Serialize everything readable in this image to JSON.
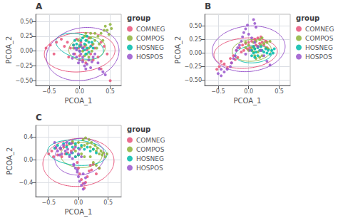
{
  "chart_data": [
    {
      "type": "scatter",
      "title": "A",
      "x_label": "PCOA_1",
      "y_label": "PCOA_2",
      "legend_title": "group",
      "legend": "right",
      "grid": true,
      "xlim": [
        -0.72,
        0.68
      ],
      "ylim": [
        -0.58,
        0.62
      ],
      "xticks": [
        {
          "value": -0.5,
          "label": "−0.5"
        },
        {
          "value": 0,
          "label": "0.0"
        },
        0.5
      ],
      "yticks": [
        {
          "value": -0.5,
          "label": "−0.50"
        },
        {
          "value": -0.25,
          "label": "−0.25"
        },
        {
          "value": 0,
          "label": "0.00"
        },
        0.25,
        {
          "value": 0.5,
          "label": "0.50"
        }
      ],
      "series": [
        {
          "name": "COMNEG",
          "color": "#E8537A",
          "x": [
            -0.55,
            -0.48,
            -0.42,
            -0.38,
            -0.3,
            -0.25,
            -0.2,
            -0.18,
            -0.15,
            -0.1,
            -0.08,
            -0.05,
            -0.02,
            0.0,
            0.02,
            0.05,
            0.08,
            0.1,
            0.12,
            0.15,
            0.18,
            0.2,
            0.22,
            0.25,
            0.3,
            0.35,
            0.4,
            0.45,
            0.5,
            0.35
          ],
          "values": [
            0.05,
            0.1,
            -0.05,
            0.15,
            0.2,
            0.08,
            0.15,
            -0.1,
            0.05,
            0.1,
            -0.05,
            0.2,
            0.05,
            -0.08,
            0.15,
            -0.15,
            0.08,
            -0.2,
            0.02,
            0.22,
            -0.05,
            0.1,
            -0.15,
            0.05,
            -0.1,
            0.15,
            0.08,
            -0.05,
            -0.5,
            -0.3
          ],
          "ellipse": {
            "cx": 0.0,
            "cy": -0.02,
            "rx": 0.58,
            "ry": 0.33,
            "angle": 5
          }
        },
        {
          "name": "COMPOS",
          "color": "#8DB33A",
          "x": [
            -0.1,
            0.0,
            0.05,
            0.08,
            0.1,
            0.12,
            0.15,
            0.18,
            0.2,
            0.22,
            0.25,
            0.28,
            0.3,
            0.32,
            0.35,
            0.38,
            0.4,
            0.42,
            0.45,
            0.48,
            0.5,
            0.52,
            0.12,
            0.15,
            0.18,
            0.1,
            0.08,
            -0.02,
            0.02,
            0.25
          ],
          "values": [
            0.05,
            0.1,
            0.0,
            -0.08,
            0.1,
            0.18,
            0.05,
            0.22,
            0.0,
            0.12,
            0.18,
            0.05,
            0.25,
            0.12,
            0.3,
            0.18,
            0.35,
            0.42,
            0.35,
            0.28,
            0.45,
            0.38,
            -0.05,
            -0.1,
            0.3,
            0.3,
            0.25,
            0.18,
            0.08,
            0.3
          ],
          "ellipse": {
            "cx": 0.12,
            "cy": 0.04,
            "rx": 0.3,
            "ry": 0.2,
            "angle": 8
          }
        },
        {
          "name": "HOSNEG",
          "color": "#00BBAA",
          "x": [
            -0.08,
            -0.05,
            0.0,
            0.02,
            0.05,
            0.05,
            0.08,
            0.1,
            0.12,
            0.12,
            0.15,
            0.15,
            0.18,
            0.2,
            0.22,
            0.0,
            -0.05,
            -0.1,
            0.08,
            0.1
          ],
          "values": [
            0.18,
            0.12,
            0.08,
            0.18,
            0.05,
            0.22,
            0.12,
            0.18,
            0.05,
            0.25,
            0.15,
            -0.02,
            0.08,
            0.15,
            0.05,
            0.0,
            0.05,
            0.1,
            0.02,
            -0.05
          ],
          "ellipse": {
            "cx": 0.0,
            "cy": 0.08,
            "rx": 0.4,
            "ry": 0.2,
            "angle": -15
          }
        },
        {
          "name": "HOSPOS",
          "color": "#9955CC",
          "x": [
            -0.05,
            0.0,
            0.02,
            0.05,
            0.02,
            0.05,
            0.05,
            0.0,
            -0.05,
            -0.02,
            0.08,
            0.1,
            0.12,
            0.15,
            0.18,
            0.2,
            0.22,
            0.25,
            0.3,
            0.32,
            0.38,
            0.42,
            -0.08,
            -0.1,
            -0.12
          ],
          "values": [
            0.02,
            0.0,
            -0.05,
            0.05,
            0.1,
            -0.1,
            -0.18,
            -0.15,
            -0.1,
            -0.2,
            -0.25,
            -0.3,
            -0.22,
            -0.15,
            -0.28,
            -0.18,
            -0.1,
            -0.05,
            -0.2,
            -0.3,
            -0.35,
            -0.4,
            0.05,
            -0.05,
            -0.12
          ],
          "ellipse": {
            "cx": 0.05,
            "cy": -0.05,
            "rx": 0.6,
            "ry": 0.44,
            "angle": 12
          }
        }
      ]
    },
    {
      "type": "scatter",
      "title": "B",
      "x_label": "PCOA_1",
      "y_label": "PCOA_2",
      "legend_title": "group",
      "legend": "right",
      "grid": true,
      "xlim": [
        -0.72,
        0.68
      ],
      "ylim": [
        -0.6,
        0.72
      ],
      "xticks": [
        {
          "value": -0.5,
          "label": "−0.5"
        },
        {
          "value": 0,
          "label": "0.0"
        },
        0.5
      ],
      "yticks": [
        {
          "value": -0.5,
          "label": "−0.50"
        },
        {
          "value": -0.25,
          "label": "−0.25"
        },
        {
          "value": 0,
          "label": "0.00"
        },
        0.25,
        {
          "value": 0.5,
          "label": "0.50"
        }
      ],
      "series": [
        {
          "name": "COMNEG",
          "color": "#E8537A",
          "x": [
            -0.52,
            -0.48,
            -0.45,
            -0.4,
            -0.35,
            -0.3,
            -0.28,
            -0.25,
            -0.22,
            -0.2,
            -0.18,
            -0.15,
            -0.12,
            -0.1,
            -0.08,
            -0.05,
            -0.02,
            0.0,
            0.02,
            0.05,
            0.08,
            0.1,
            0.12,
            0.15,
            0.18,
            0.2,
            0.22,
            0.25,
            0.28,
            0.3
          ],
          "values": [
            -0.3,
            -0.25,
            -0.15,
            -0.2,
            -0.28,
            -0.1,
            -0.18,
            -0.05,
            -0.12,
            0.05,
            -0.08,
            0.1,
            0.02,
            0.15,
            0.05,
            0.18,
            0.08,
            0.2,
            0.1,
            0.22,
            0.12,
            0.25,
            0.15,
            0.28,
            0.18,
            0.3,
            0.2,
            0.15,
            0.22,
            0.1
          ],
          "ellipse": {
            "cx": -0.05,
            "cy": 0.0,
            "rx": 0.52,
            "ry": 0.28,
            "angle": 5
          }
        },
        {
          "name": "COMPOS",
          "color": "#8DB33A",
          "x": [
            -0.05,
            0.0,
            0.05,
            0.08,
            0.1,
            0.12,
            0.15,
            0.18,
            0.2,
            0.22,
            0.25,
            0.28,
            0.3,
            0.32,
            0.35,
            0.1,
            0.12,
            0.15,
            0.18,
            0.2,
            0.22,
            0.05,
            0.08,
            -0.05,
            0.0
          ],
          "values": [
            0.2,
            0.15,
            0.1,
            0.2,
            0.08,
            0.22,
            0.12,
            0.25,
            0.15,
            0.28,
            0.18,
            0.1,
            0.2,
            0.08,
            0.22,
            -0.05,
            -0.1,
            0.02,
            -0.08,
            0.05,
            -0.05,
            0.05,
            0.02,
            0.1,
            0.05
          ],
          "ellipse": {
            "cx": 0.05,
            "cy": 0.05,
            "rx": 0.32,
            "ry": 0.2,
            "angle": 5
          }
        },
        {
          "name": "HOSNEG",
          "color": "#00BBAA",
          "x": [
            0.05,
            0.08,
            0.1,
            0.12,
            0.15,
            0.18,
            0.2,
            0.22,
            0.25,
            0.28,
            0.3,
            0.32,
            0.35,
            0.38,
            0.4,
            0.42,
            0.05,
            0.1,
            0.15,
            0.08
          ],
          "values": [
            0.05,
            0.0,
            0.08,
            0.02,
            0.1,
            0.05,
            0.12,
            0.05,
            0.02,
            0.08,
            0.0,
            0.05,
            -0.02,
            0.05,
            0.0,
            0.08,
            -0.05,
            -0.08,
            -0.05,
            0.12
          ],
          "ellipse": {
            "cx": 0.08,
            "cy": -0.02,
            "rx": 0.3,
            "ry": 0.16,
            "angle": 5
          }
        },
        {
          "name": "HOSPOS",
          "color": "#9955CC",
          "x": [
            0.08,
            0.1,
            0.12,
            -0.02,
            -0.05,
            -0.08,
            -0.1,
            -0.12,
            -0.15,
            -0.18,
            -0.2,
            -0.22,
            -0.25,
            -0.28,
            -0.3,
            -0.35,
            -0.4,
            0.0,
            0.05,
            0.1,
            0.15,
            0.2,
            0.25,
            0.3,
            0.35,
            -0.45,
            -0.5,
            -0.45,
            0.02,
            -0.05
          ],
          "values": [
            0.62,
            0.55,
            0.48,
            0.52,
            0.45,
            0.38,
            0.3,
            0.22,
            0.15,
            0.1,
            0.05,
            -0.05,
            -0.1,
            -0.18,
            -0.25,
            -0.3,
            -0.35,
            0.35,
            0.28,
            0.2,
            0.12,
            0.05,
            -0.05,
            -0.15,
            -0.22,
            -0.3,
            -0.38,
            -0.42,
            0.05,
            -0.02
          ],
          "ellipse": {
            "cx": 0.0,
            "cy": 0.08,
            "rx": 0.6,
            "ry": 0.42,
            "angle": 8
          }
        }
      ]
    },
    {
      "type": "scatter",
      "title": "C",
      "x_label": "PCOA_1",
      "y_label": "PCOA_2",
      "legend_title": "group",
      "legend": "right",
      "grid": true,
      "xlim": [
        -0.72,
        0.72
      ],
      "ylim": [
        -0.65,
        0.6
      ],
      "xticks": [
        {
          "value": -0.5,
          "label": "−0.5"
        },
        {
          "value": 0,
          "label": "0.0"
        },
        0.5
      ],
      "yticks": [
        {
          "value": -0.4,
          "label": "−0.4"
        },
        {
          "value": 0,
          "label": "0.0"
        },
        0.4
      ],
      "series": [
        {
          "name": "COMNEG",
          "color": "#E8537A",
          "x": [
            -0.5,
            -0.45,
            -0.42,
            -0.38,
            -0.35,
            -0.3,
            -0.28,
            -0.25,
            -0.22,
            -0.2,
            -0.18,
            -0.15,
            -0.12,
            -0.1,
            -0.08,
            -0.05,
            -0.02,
            0.0,
            0.02,
            0.05,
            0.08,
            0.1,
            0.12,
            0.15,
            0.18,
            0.2,
            0.22,
            0.25,
            0.3,
            0.35
          ],
          "values": [
            0.1,
            0.15,
            0.05,
            0.2,
            0.08,
            0.18,
            0.05,
            0.22,
            0.1,
            0.25,
            0.12,
            0.28,
            0.15,
            0.3,
            0.18,
            0.05,
            -0.05,
            -0.15,
            -0.25,
            -0.35,
            -0.42,
            -0.5,
            -0.4,
            -0.3,
            -0.2,
            -0.1,
            -0.18,
            -0.08,
            -0.25,
            -0.15
          ],
          "ellipse": {
            "cx": 0.0,
            "cy": -0.05,
            "rx": 0.6,
            "ry": 0.42,
            "angle": 5
          }
        },
        {
          "name": "COMPOS",
          "color": "#8DB33A",
          "x": [
            -0.15,
            -0.1,
            -0.05,
            0.0,
            0.05,
            0.08,
            0.1,
            0.12,
            0.15,
            0.18,
            0.2,
            0.22,
            0.25,
            0.28,
            0.3,
            0.32,
            0.35,
            0.38,
            0.4,
            0.42,
            0.45,
            0.48,
            0.2,
            0.25,
            0.3,
            0.35,
            0.05,
            0.1,
            -0.05,
            0.0
          ],
          "values": [
            0.28,
            0.32,
            0.25,
            0.3,
            0.22,
            0.35,
            0.25,
            0.38,
            0.28,
            0.35,
            0.22,
            0.3,
            0.18,
            0.25,
            0.15,
            0.2,
            0.1,
            0.15,
            0.08,
            0.12,
            0.05,
            0.1,
            0.05,
            -0.05,
            -0.1,
            -0.15,
            0.1,
            0.05,
            0.15,
            0.08
          ],
          "ellipse": {
            "cx": 0.05,
            "cy": 0.08,
            "rx": 0.35,
            "ry": 0.22,
            "angle": 0
          }
        },
        {
          "name": "HOSNEG",
          "color": "#00BBAA",
          "x": [
            -0.4,
            -0.35,
            -0.3,
            -0.25,
            -0.2,
            -0.15,
            -0.1,
            -0.05,
            0.0,
            0.05,
            0.1,
            0.15,
            0.2,
            0.25,
            0.3,
            -0.2,
            -0.15,
            -0.1,
            -0.05,
            0.0
          ],
          "values": [
            0.2,
            0.25,
            0.2,
            0.28,
            0.22,
            0.28,
            0.22,
            0.28,
            0.2,
            0.25,
            0.18,
            0.22,
            0.15,
            0.18,
            0.12,
            0.1,
            0.08,
            0.12,
            0.05,
            0.08
          ],
          "ellipse": {
            "cx": -0.02,
            "cy": 0.12,
            "rx": 0.5,
            "ry": 0.22,
            "angle": -5
          }
        },
        {
          "name": "HOSPOS",
          "color": "#9955CC",
          "x": [
            -0.4,
            -0.38,
            -0.35,
            -0.32,
            -0.3,
            -0.28,
            -0.25,
            -0.22,
            -0.2,
            -0.18,
            -0.15,
            -0.12,
            -0.1,
            -0.08,
            -0.05,
            -0.02,
            0.0,
            0.02,
            0.05,
            0.08,
            0.1,
            0.12,
            0.08,
            -0.02,
            -0.08,
            0.0,
            0.05,
            0.02,
            -0.05,
            -0.12
          ],
          "values": [
            0.3,
            0.22,
            0.15,
            0.08,
            0.2,
            0.1,
            0.25,
            0.15,
            0.3,
            0.18,
            0.05,
            0.12,
            0.02,
            -0.08,
            -0.15,
            -0.22,
            -0.3,
            -0.38,
            -0.45,
            -0.52,
            -0.42,
            -0.32,
            -0.25,
            -0.18,
            -0.1,
            0.1,
            0.05,
            0.18,
            0.22,
            0.28
          ],
          "ellipse": {
            "cx": 0.02,
            "cy": 0.05,
            "rx": 0.42,
            "ry": 0.32,
            "angle": 8
          }
        }
      ]
    }
  ]
}
